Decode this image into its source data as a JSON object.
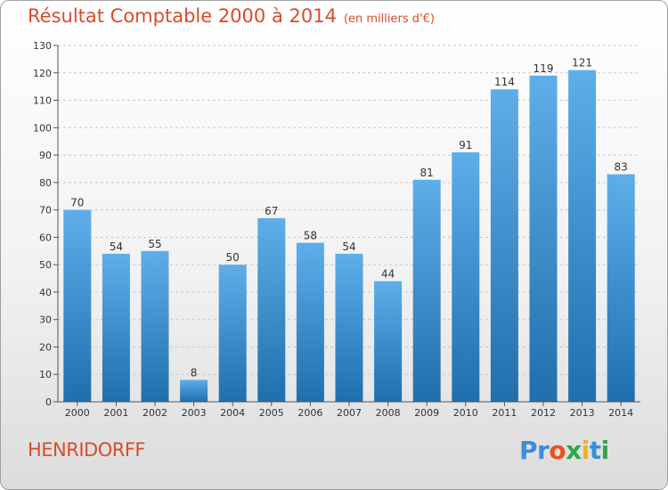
{
  "title": "Résultat Comptable 2000 à 2014",
  "unit_note": "(en milliers d'€)",
  "commune": "HENRIDORFF",
  "logo": {
    "letters": [
      "P",
      "r",
      "o",
      "x",
      "i",
      "t",
      "i"
    ],
    "colors": [
      "#3a8fd8",
      "#3a8fd8",
      "#e8531f",
      "#2ea84a",
      "#e8b51f",
      "#3a8fd8",
      "#2ea84a"
    ]
  },
  "colors": {
    "title": "#d94c2c",
    "bar_light": "#5eaeea",
    "bar_dark": "#1f6fae"
  },
  "chart_data": {
    "type": "bar",
    "categories": [
      "2000",
      "2001",
      "2002",
      "2003",
      "2004",
      "2005",
      "2006",
      "2007",
      "2008",
      "2009",
      "2010",
      "2011",
      "2012",
      "2013",
      "2014"
    ],
    "values": [
      70,
      54,
      55,
      8,
      50,
      67,
      58,
      54,
      44,
      81,
      91,
      114,
      119,
      121,
      83
    ],
    "title": "Résultat Comptable 2000 à 2014",
    "xlabel": "",
    "ylabel": "",
    "ylim": [
      0,
      130
    ],
    "yticks": [
      0,
      10,
      20,
      30,
      40,
      50,
      60,
      70,
      80,
      90,
      100,
      110,
      120,
      130
    ],
    "grid": "dashed-horizontal",
    "data_labels": true
  }
}
